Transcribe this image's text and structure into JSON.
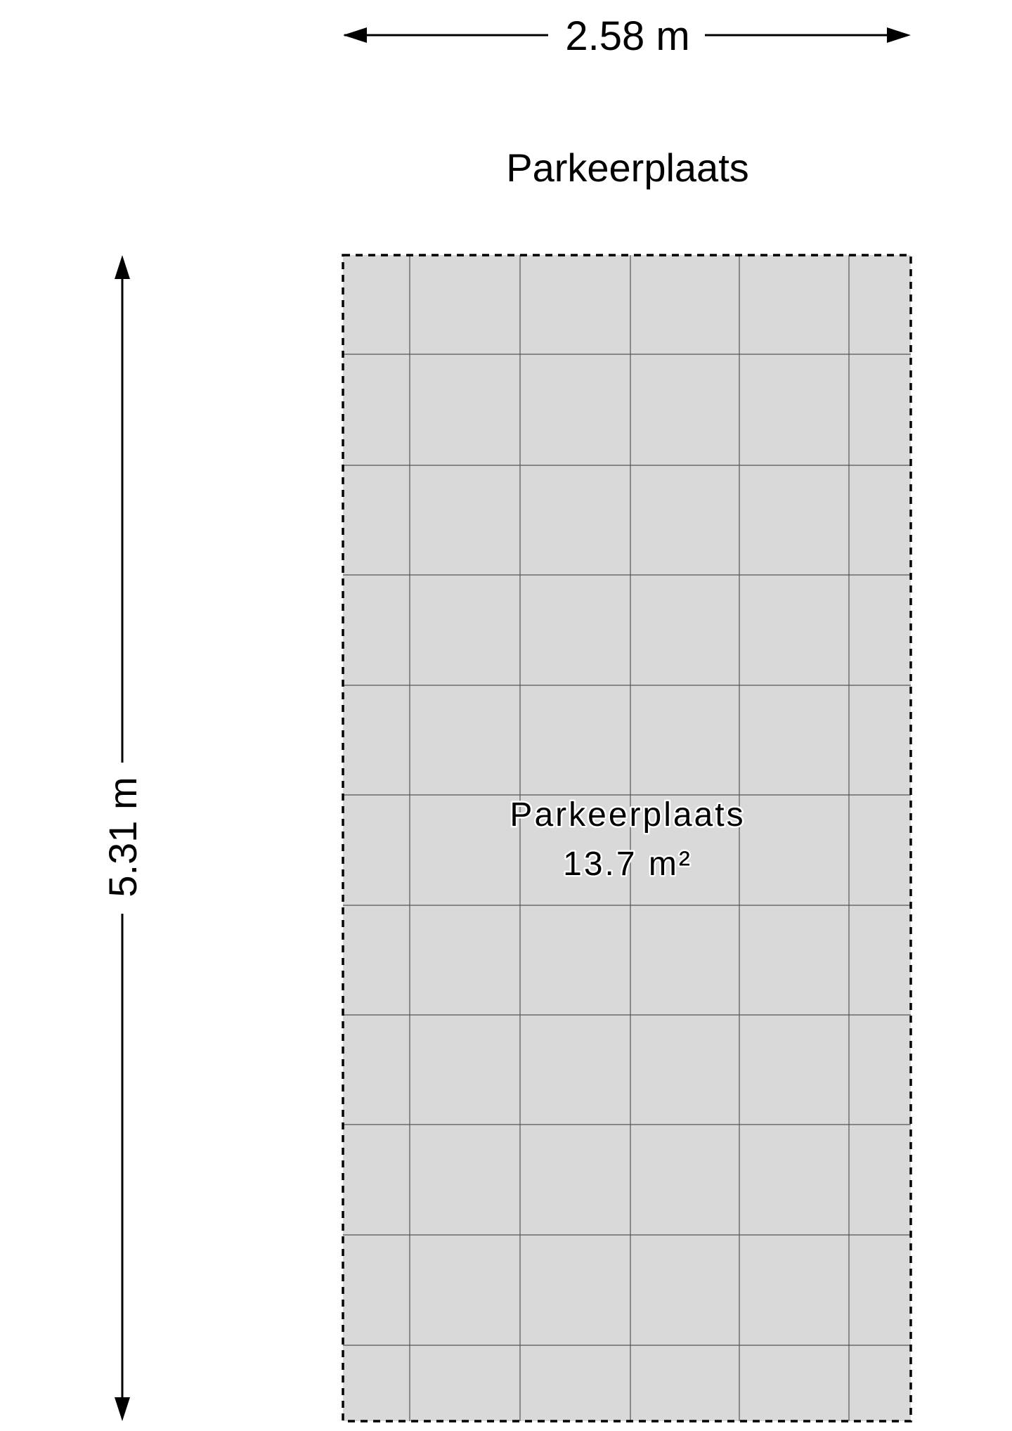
{
  "dimensions": {
    "width_label": "2.58 m",
    "height_label": "5.31 m"
  },
  "room": {
    "title": "Parkeerplaats",
    "name": "Parkeerplaats",
    "area": "13.7 m²"
  },
  "colors": {
    "floor_fill": "#d9d9d9",
    "grid_line": "#555555",
    "outline": "#000000"
  }
}
